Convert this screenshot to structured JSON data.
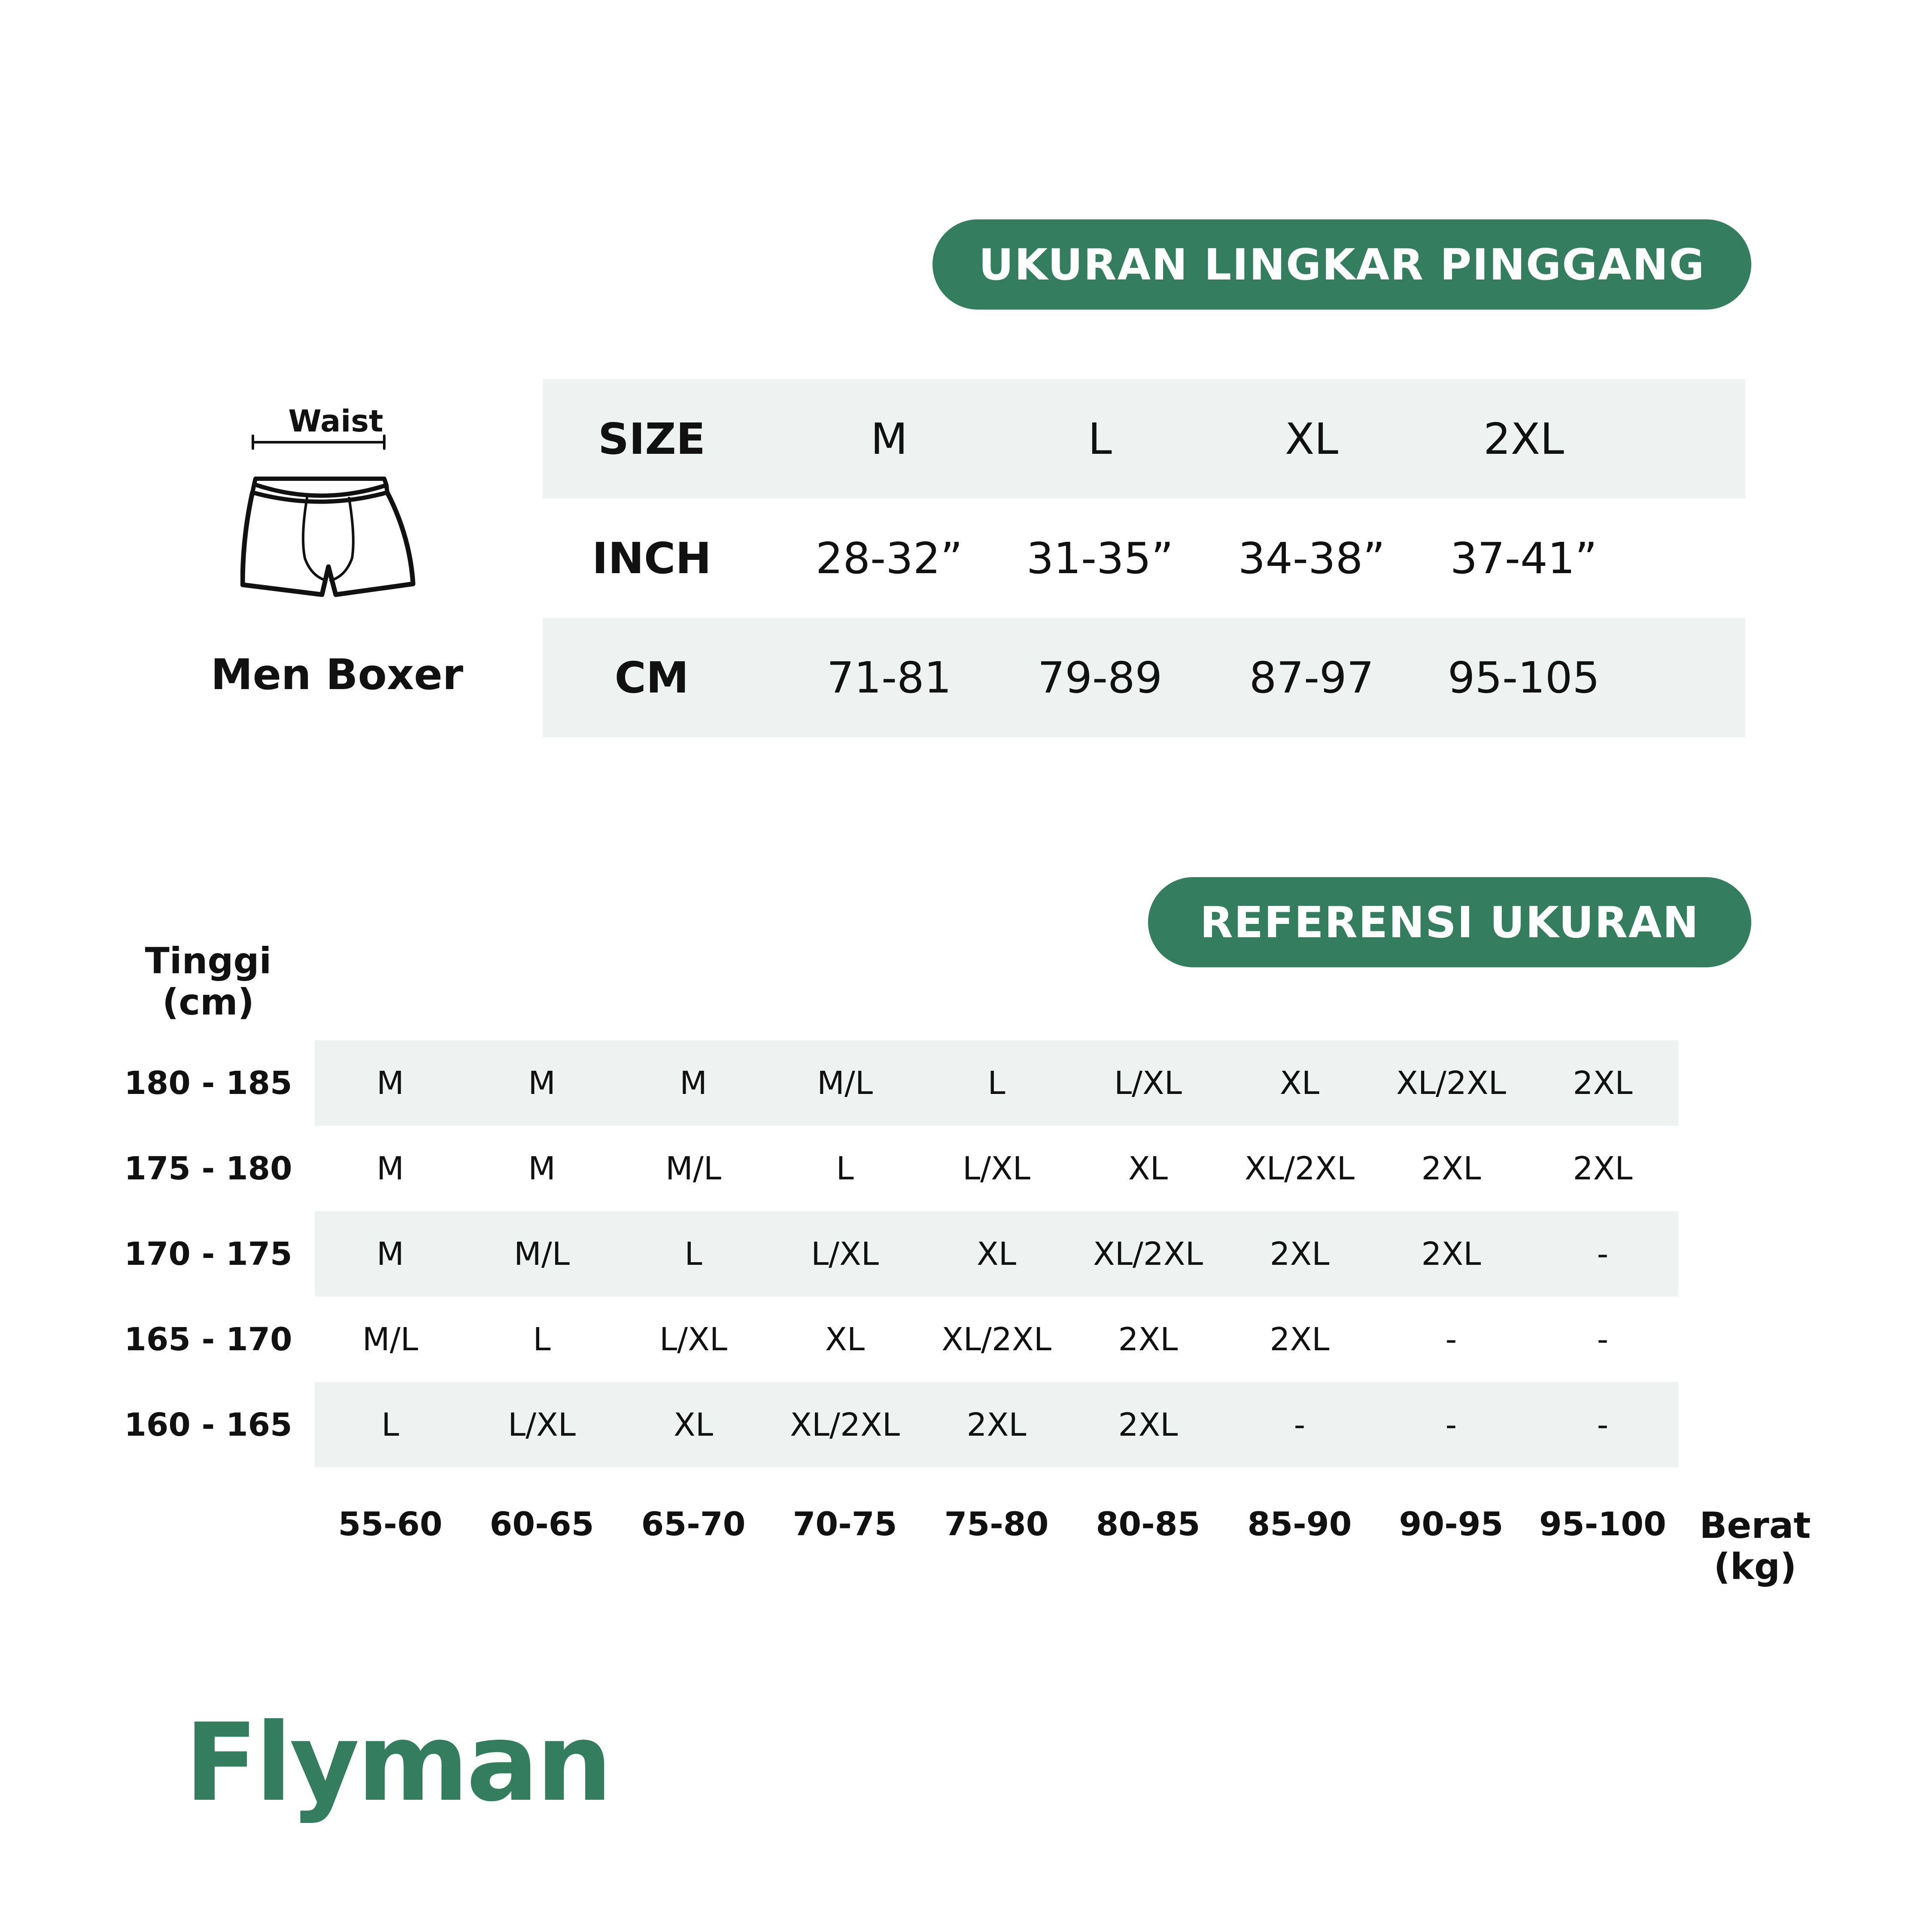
{
  "brand": {
    "logo": "Flyman",
    "accent": "#347D5E",
    "row_shade": "#EEF2F0"
  },
  "waist_section": {
    "title": "UKURAN LINGKAR PINGGANG",
    "illustration": {
      "waist_label": "Waist",
      "icon": "boxer-shorts-icon",
      "caption": "Men Boxer"
    },
    "rows": [
      {
        "label": "SIZE",
        "values": [
          "M",
          "L",
          "XL",
          "2XL"
        ]
      },
      {
        "label": "INCH",
        "values": [
          "28-32”",
          "31-35”",
          "34-38”",
          "37-41”"
        ]
      },
      {
        "label": "CM",
        "values": [
          "71-81",
          "79-89",
          "87-97",
          "95-105"
        ]
      }
    ]
  },
  "reference_section": {
    "title": "REFERENSI UKURAN",
    "height_axis": {
      "line1": "Tinggi",
      "line2": "(cm)"
    },
    "weight_axis": {
      "line1": "Berat",
      "line2": "(kg)"
    },
    "weights": [
      "55-60",
      "60-65",
      "65-70",
      "70-75",
      "75-80",
      "80-85",
      "85-90",
      "90-95",
      "95-100"
    ],
    "rows": [
      {
        "height": "180 - 185",
        "sizes": [
          "M",
          "M",
          "M",
          "M/L",
          "L",
          "L/XL",
          "XL",
          "XL/2XL",
          "2XL"
        ]
      },
      {
        "height": "175 - 180",
        "sizes": [
          "M",
          "M",
          "M/L",
          "L",
          "L/XL",
          "XL",
          "XL/2XL",
          "2XL",
          "2XL"
        ]
      },
      {
        "height": "170 - 175",
        "sizes": [
          "M",
          "M/L",
          "L",
          "L/XL",
          "XL",
          "XL/2XL",
          "2XL",
          "2XL",
          "-"
        ]
      },
      {
        "height": "165 - 170",
        "sizes": [
          "M/L",
          "L",
          "L/XL",
          "XL",
          "XL/2XL",
          "2XL",
          "2XL",
          "-",
          "-"
        ]
      },
      {
        "height": "160 - 165",
        "sizes": [
          "L",
          "L/XL",
          "XL",
          "XL/2XL",
          "2XL",
          "2XL",
          "-",
          "-",
          "-"
        ]
      }
    ]
  }
}
